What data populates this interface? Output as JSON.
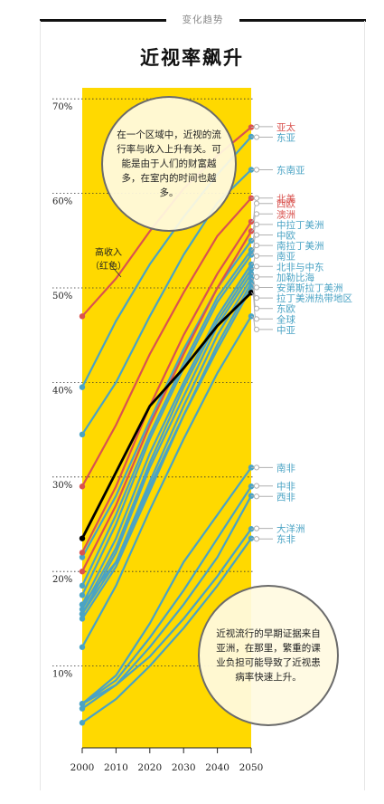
{
  "header": {
    "section_tag": "变化趋势"
  },
  "chart_data": {
    "type": "line",
    "title": "近视率飙升",
    "x": [
      2000,
      2010,
      2020,
      2030,
      2040,
      2050
    ],
    "xlim": [
      2000,
      2050
    ],
    "ylim": [
      0,
      72
    ],
    "y_ticks": [
      10,
      20,
      30,
      40,
      50,
      60,
      70
    ],
    "y_tick_labels": [
      "10%",
      "20%",
      "30%",
      "40%",
      "50%",
      "60%",
      "70%"
    ],
    "grid": "dotted horizontal",
    "highlight_band": [
      2000,
      2050
    ],
    "series": [
      {
        "name": "亚太",
        "group": "high",
        "values": [
          47.0,
          51.0,
          56.0,
          60.5,
          64.0,
          67.0
        ]
      },
      {
        "name": "东亚",
        "group": "low",
        "values": [
          39.5,
          46.5,
          52.5,
          57.5,
          62.0,
          66.0
        ]
      },
      {
        "name": "东南亚",
        "group": "low",
        "values": [
          34.5,
          40.0,
          47.0,
          53.5,
          59.0,
          62.5
        ]
      },
      {
        "name": "北美",
        "group": "high",
        "values": [
          29.0,
          35.5,
          43.0,
          49.5,
          55.5,
          59.5
        ]
      },
      {
        "name": "西欧",
        "group": "high",
        "values": [
          22.0,
          29.0,
          37.5,
          45.0,
          51.5,
          57.0
        ]
      },
      {
        "name": "澳洲",
        "group": "high",
        "values": [
          20.0,
          27.0,
          35.5,
          43.0,
          50.0,
          56.0
        ]
      },
      {
        "name": "中拉丁美洲",
        "group": "low",
        "values": [
          21.5,
          28.0,
          36.0,
          43.5,
          50.0,
          55.0
        ]
      },
      {
        "name": "中欧",
        "group": "low",
        "values": [
          18.5,
          26.0,
          34.5,
          42.0,
          49.0,
          54.0
        ]
      },
      {
        "name": "南拉丁美洲",
        "group": "low",
        "values": [
          17.5,
          25.0,
          34.0,
          41.5,
          48.5,
          53.5
        ]
      },
      {
        "name": "南亚",
        "group": "low",
        "values": [
          16.5,
          23.5,
          32.5,
          40.0,
          47.0,
          52.5
        ]
      },
      {
        "name": "北非与中东",
        "group": "low",
        "values": [
          16.0,
          22.5,
          31.5,
          39.5,
          46.5,
          52.0
        ]
      },
      {
        "name": "加勒比海",
        "group": "low",
        "values": [
          15.5,
          22.0,
          31.0,
          38.5,
          46.0,
          51.5
        ]
      },
      {
        "name": "安第斯拉丁美洲",
        "group": "low",
        "values": [
          15.5,
          21.0,
          29.5,
          37.5,
          45.0,
          51.0
        ]
      },
      {
        "name": "拉丁美洲热带地区",
        "group": "low",
        "values": [
          15.0,
          20.5,
          28.5,
          36.5,
          44.0,
          50.5
        ]
      },
      {
        "name": "东欧",
        "group": "low",
        "values": [
          16.5,
          21.0,
          29.0,
          36.5,
          43.5,
          50.0
        ]
      },
      {
        "name": "全球",
        "group": "global",
        "values": [
          23.5,
          30.5,
          37.5,
          41.5,
          46.0,
          49.5
        ]
      },
      {
        "name": "中亚",
        "group": "low",
        "values": [
          12.0,
          18.5,
          26.5,
          34.0,
          41.0,
          47.0
        ]
      },
      {
        "name": "南非",
        "group": "low",
        "values": [
          6.0,
          9.0,
          14.5,
          21.0,
          26.0,
          31.0
        ]
      },
      {
        "name": "中非",
        "group": "low",
        "values": [
          6.0,
          8.5,
          13.0,
          18.0,
          23.5,
          29.0
        ]
      },
      {
        "name": "西非",
        "group": "low",
        "values": [
          5.5,
          8.0,
          12.0,
          16.5,
          21.5,
          28.0
        ]
      },
      {
        "name": "大洋洲",
        "group": "low",
        "values": [
          6.0,
          8.0,
          11.0,
          15.0,
          19.5,
          24.5
        ]
      },
      {
        "name": "东非",
        "group": "low",
        "values": [
          4.0,
          6.5,
          10.0,
          14.0,
          18.5,
          23.5
        ]
      }
    ],
    "colors": {
      "high": "#d9534f",
      "low": "#4aa3c4",
      "global": "#000000",
      "band": "#ffd900",
      "connector": "#b0b0b0"
    },
    "annotation": "高收入（红色）",
    "callouts": [
      "在一个区域中，近视的流行率与收入上升有关。可能是由于人们的财富越多，在室内的时间也越多。",
      "近视流行的早期证据来自亚洲，在那里，繁重的课业负担可能导致了近视患病率快速上升。"
    ]
  }
}
